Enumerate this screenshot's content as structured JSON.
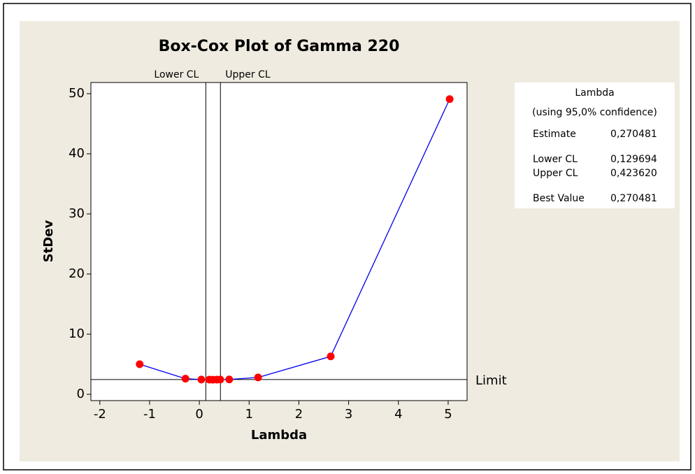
{
  "chart_data": {
    "type": "line",
    "title": "Box-Cox Plot of Gamma 220",
    "x_label": "Lambda",
    "y_label": "StDev",
    "x": [
      -1.2,
      -0.28,
      0.04,
      0.2,
      0.27,
      0.35,
      0.42,
      0.6,
      1.18,
      2.64,
      5.03
    ],
    "series": [
      {
        "color": "#0000ee",
        "marker_color": "#ff0000",
        "values": [
          5.0,
          2.6,
          2.45,
          2.44,
          2.43,
          2.44,
          2.45,
          2.47,
          2.8,
          6.3,
          49.1
        ]
      }
    ],
    "xlim": [
      -2.18,
      5.38
    ],
    "ylim": [
      -1.05,
      51.86
    ],
    "xticks": [
      -2,
      -1,
      0,
      1,
      2,
      3,
      4,
      5
    ],
    "yticks": [
      0,
      10,
      20,
      30,
      40,
      50
    ],
    "vlines": [
      {
        "label": "Lower CL",
        "value": 0.129694
      },
      {
        "label": "Upper CL",
        "value": 0.42362
      }
    ],
    "hline": {
      "label": "Limit",
      "value": 2.45
    },
    "info_box": {
      "title": "Lambda",
      "subtitle": "(using 95,0% confidence)",
      "rows": [
        [
          "Estimate",
          "0,270481"
        ],
        [
          "Lower CL",
          "0,129694"
        ],
        [
          "Upper CL",
          "0,423620"
        ],
        [
          "Best Value",
          "0,270481"
        ]
      ]
    }
  }
}
